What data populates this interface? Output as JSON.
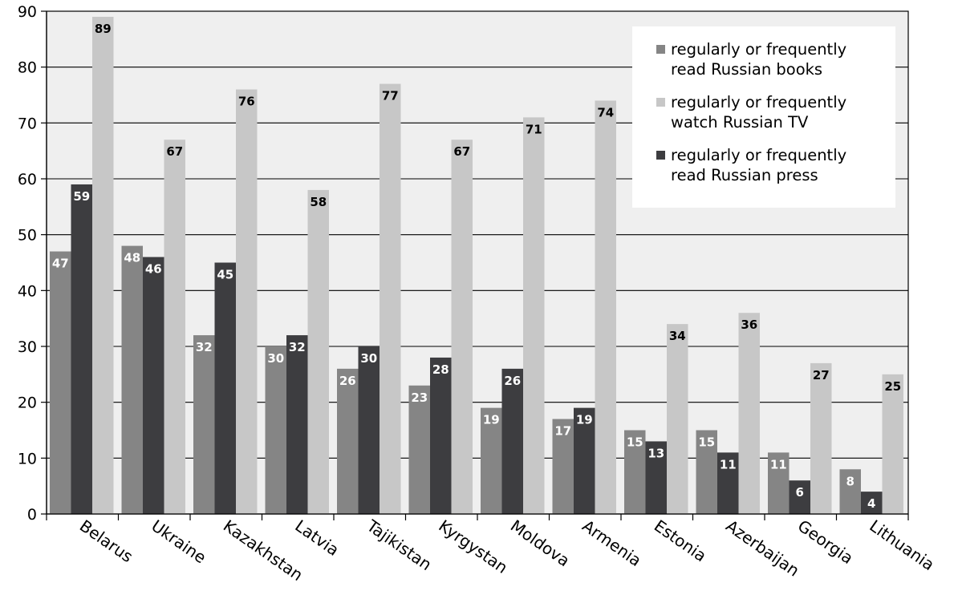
{
  "chart_data": {
    "type": "bar",
    "categories": [
      "Belarus",
      "Ukraine",
      "Kazakhstan",
      "Latvia",
      "Tajikistan",
      "Kyrgystan",
      "Moldova",
      "Armenia",
      "Estonia",
      "Azerbaijan",
      "Georgia",
      "Lithuania"
    ],
    "series": [
      {
        "name": "regularly or frequently read Russian books",
        "color": "#858585",
        "values": [
          47,
          48,
          32,
          30,
          26,
          23,
          19,
          17,
          15,
          15,
          11,
          8
        ]
      },
      {
        "name": "regularly or frequently read Russian press",
        "color": "#3d3d40",
        "values": [
          59,
          46,
          45,
          32,
          30,
          28,
          26,
          19,
          13,
          11,
          6,
          4
        ]
      },
      {
        "name": "regularly or frequently watch Russian TV",
        "color": "#c7c7c7",
        "values": [
          89,
          67,
          76,
          58,
          77,
          67,
          71,
          74,
          34,
          36,
          27,
          25
        ]
      }
    ],
    "legend_items": [
      {
        "lines": [
          "regularly or frequently",
          "read Russian books"
        ],
        "color": "#858585"
      },
      {
        "lines": [
          "regularly or frequently",
          "watch Russian TV"
        ],
        "color": "#c7c7c7"
      },
      {
        "lines": [
          "regularly or frequently",
          "read Russian press"
        ],
        "color": "#3d3d40"
      }
    ],
    "yticks": [
      0,
      10,
      20,
      30,
      40,
      50,
      60,
      70,
      80,
      90
    ],
    "ylim": [
      0,
      90
    ],
    "grid": true,
    "legend_position": "top-right",
    "plot_background": "#efefef"
  }
}
